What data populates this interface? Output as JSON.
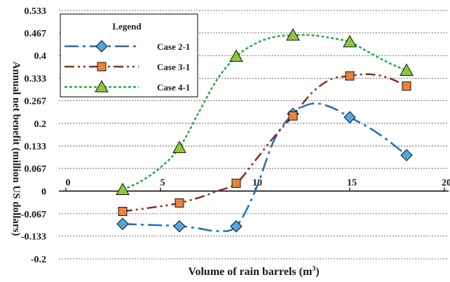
{
  "chart_data": {
    "type": "line",
    "title": "",
    "xlabel": "Volume of rain barrels (m",
    "xlabel_sup": "3",
    "xlabel_tail": ")",
    "ylabel": "Annual net benefit (million US dollars)",
    "xlim": [
      0,
      20
    ],
    "ylim": [
      -0.2,
      0.533
    ],
    "xticks": [
      "0",
      "5",
      "10",
      "15",
      "20"
    ],
    "yticks": [
      "0.533",
      "0.467",
      "0.4",
      "0.333",
      "0.267",
      "0.2",
      "0.133",
      "0.067",
      "0",
      "-0.067",
      "-0.133",
      "-0.2"
    ],
    "grid": true,
    "legend": {
      "title": "Legend",
      "placement": "top-left"
    },
    "series": [
      {
        "name": "Case 2-1",
        "color": "#1f6fb7",
        "marker_color": "#4fa8e0",
        "marker": "diamond",
        "dash": "dashdot",
        "x": [
          3,
          6,
          9,
          12,
          15,
          18
        ],
        "y": [
          -0.097,
          -0.104,
          -0.104,
          0.228,
          0.218,
          0.106
        ],
        "curve": [
          [
            3,
            -0.097
          ],
          [
            5,
            -0.101
          ],
          [
            6,
            -0.103
          ],
          [
            7,
            -0.11
          ],
          [
            8,
            -0.118
          ],
          [
            9,
            -0.104
          ],
          [
            10,
            0.0
          ],
          [
            11,
            0.15
          ],
          [
            12,
            0.228
          ],
          [
            13,
            0.258
          ],
          [
            14,
            0.248
          ],
          [
            15,
            0.218
          ],
          [
            16,
            0.188
          ],
          [
            17,
            0.15
          ],
          [
            18,
            0.106
          ]
        ]
      },
      {
        "name": "Case 3-1",
        "color": "#8b2e1e",
        "marker_color": "#e8843a",
        "marker": "square",
        "dash": "dashdotdot",
        "x": [
          3,
          6,
          9,
          12,
          15,
          18
        ],
        "y": [
          -0.06,
          -0.035,
          0.023,
          0.222,
          0.34,
          0.31
        ],
        "curve": [
          [
            3,
            -0.06
          ],
          [
            5,
            -0.045
          ],
          [
            6,
            -0.035
          ],
          [
            7,
            -0.02
          ],
          [
            8,
            0.0
          ],
          [
            9,
            0.023
          ],
          [
            10,
            0.09
          ],
          [
            11,
            0.16
          ],
          [
            12,
            0.222
          ],
          [
            13,
            0.29
          ],
          [
            14,
            0.33
          ],
          [
            15,
            0.34
          ],
          [
            16,
            0.345
          ],
          [
            17,
            0.335
          ],
          [
            18,
            0.31
          ]
        ]
      },
      {
        "name": "Case 4-1",
        "color": "#2aa84a",
        "marker_color": "#8fc63e",
        "marker": "triangle",
        "dash": "dotted",
        "x": [
          3,
          6,
          9,
          12,
          15,
          18
        ],
        "y": [
          0.004,
          0.128,
          0.397,
          0.46,
          0.44,
          0.356
        ],
        "curve": [
          [
            3,
            0.004
          ],
          [
            4,
            0.03
          ],
          [
            5,
            0.07
          ],
          [
            6,
            0.128
          ],
          [
            7,
            0.23
          ],
          [
            8,
            0.33
          ],
          [
            9,
            0.397
          ],
          [
            10,
            0.435
          ],
          [
            11,
            0.455
          ],
          [
            12,
            0.46
          ],
          [
            13,
            0.46
          ],
          [
            14,
            0.452
          ],
          [
            15,
            0.44
          ],
          [
            16,
            0.41
          ],
          [
            17,
            0.38
          ],
          [
            18,
            0.356
          ]
        ]
      }
    ]
  }
}
